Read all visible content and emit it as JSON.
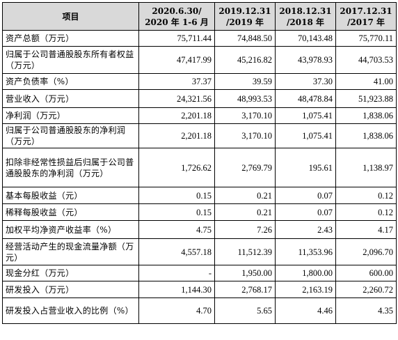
{
  "table": {
    "headers": [
      [
        "项目"
      ],
      [
        "2020.6.30/",
        "2020 年 1-6 月"
      ],
      [
        "2019.12.31",
        "/2019 年"
      ],
      [
        "2018.12.31",
        "/2018 年"
      ],
      [
        "2017.12.31",
        "/2017 年"
      ]
    ],
    "rows": [
      {
        "label": "资产总额（万元）",
        "values": [
          "75,711.44",
          "74,848.50",
          "70,143.48",
          "75,770.11"
        ]
      },
      {
        "label": "归属于公司普通股股东所有者权益（万元）",
        "values": [
          "47,417.99",
          "45,216.82",
          "43,978.93",
          "44,703.53"
        ]
      },
      {
        "label": "资产负债率（%）",
        "values": [
          "37.37",
          "39.59",
          "37.30",
          "41.00"
        ]
      },
      {
        "label": "营业收入（万元）",
        "values": [
          "24,321.56",
          "48,993.53",
          "48,478.84",
          "51,923.88"
        ]
      },
      {
        "label": "净利润（万元）",
        "values": [
          "2,201.18",
          "3,170.10",
          "1,075.41",
          "1,838.06"
        ]
      },
      {
        "label": "归属于公司普通股股东的净利润（万元）",
        "values": [
          "2,201.18",
          "3,170.10",
          "1,075.41",
          "1,838.06"
        ]
      },
      {
        "label": "扣除非经常性损益后归属于公司普通股股东的净利润（万元）",
        "values": [
          "1,726.62",
          "2,769.79",
          "195.61",
          "1,138.97"
        ]
      },
      {
        "label": "基本每股收益（元）",
        "values": [
          "0.15",
          "0.21",
          "0.07",
          "0.12"
        ]
      },
      {
        "label": "稀释每股收益（元）",
        "values": [
          "0.15",
          "0.21",
          "0.07",
          "0.12"
        ]
      },
      {
        "label": "加权平均净资产收益率（%）",
        "values": [
          "4.75",
          "7.26",
          "2.43",
          "4.17"
        ]
      },
      {
        "label": "经营活动产生的现金流量净额（万元）",
        "values": [
          "4,557.18",
          "11,512.39",
          "11,353.96",
          "2,096.70"
        ]
      },
      {
        "label": "现金分红（万元）",
        "values": [
          "-",
          "1,950.00",
          "1,800.00",
          "600.00"
        ]
      },
      {
        "label": "研发投入（万元）",
        "values": [
          "1,144.30",
          "2,768.17",
          "2,163.19",
          "2,260.72"
        ]
      },
      {
        "label": "研发投入占营业收入的比例（%）",
        "values": [
          "4.70",
          "5.65",
          "4.46",
          "4.35"
        ]
      }
    ]
  }
}
